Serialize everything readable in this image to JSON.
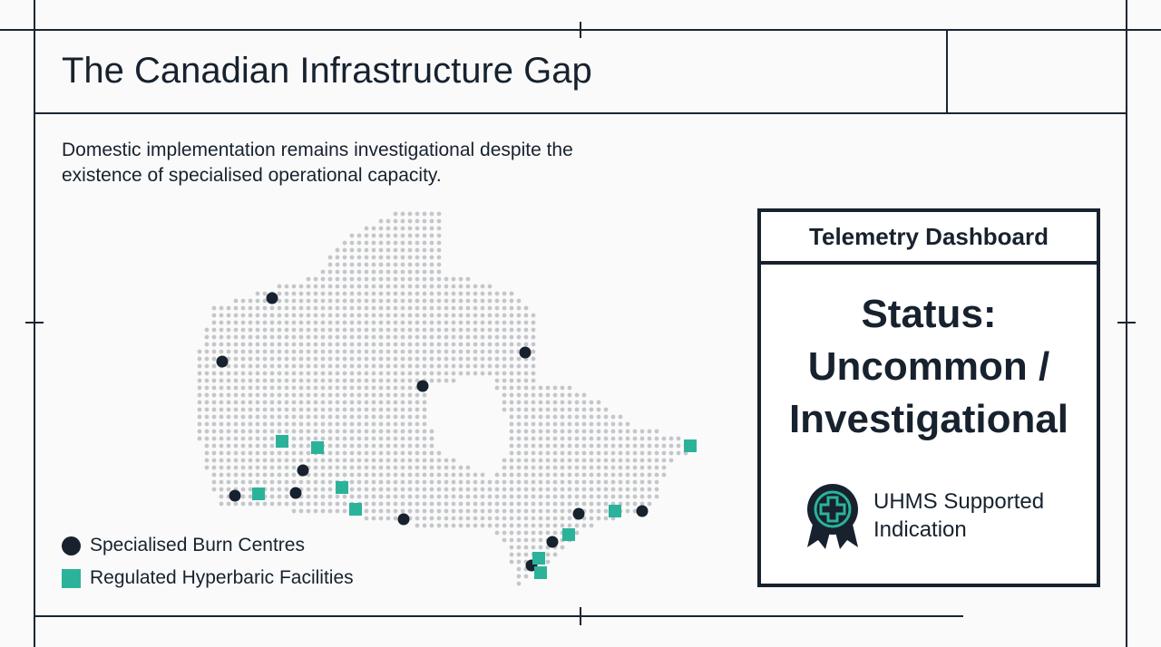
{
  "header": {
    "title": "The Canadian Infrastructure Gap"
  },
  "description": "Domestic implementation remains investigational despite the existence of specialised operational capacity.",
  "legend": {
    "items": [
      "Specialised Burn Centres",
      "Regulated Hyperbaric Facilities"
    ]
  },
  "dashboard": {
    "title": "Telemetry Dashboard",
    "status_lines": [
      "Status:",
      "Uncommon /",
      "Investigational"
    ],
    "badge_text": "UHMS Supported Indication"
  }
}
